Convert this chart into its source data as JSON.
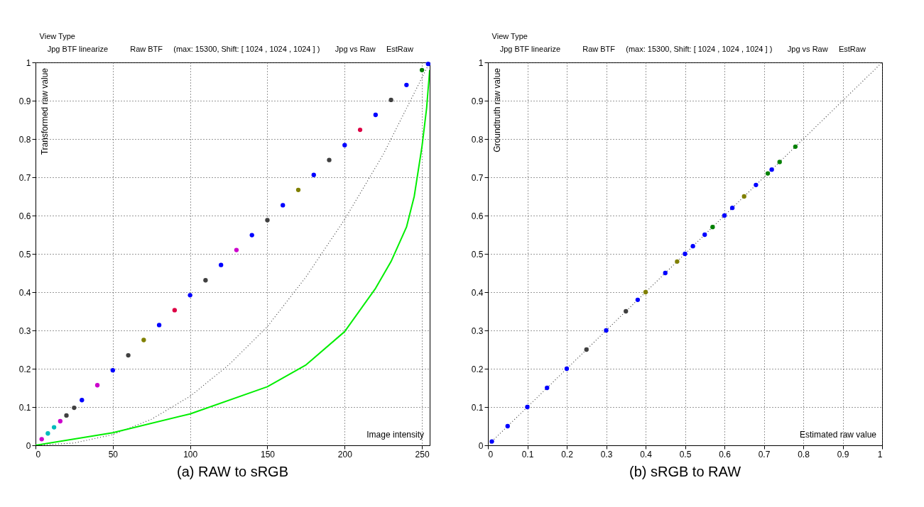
{
  "chart_data": [
    {
      "type": "scatter",
      "title": "(a) RAW to sRGB",
      "xlabel": "Image intensity",
      "ylabel": "Transformed raw value",
      "annotations": [
        "View Type",
        "Jpg BTF",
        "linearize",
        "Raw BTF",
        "(max: 15300, Shift: [ 1024 , 1024 , 1024 ] )",
        "Jpg vs Raw",
        "EstRaw"
      ],
      "xlim": [
        0,
        255
      ],
      "xticks": [
        0,
        50,
        100,
        150,
        200,
        250
      ],
      "ylim": [
        0,
        1
      ],
      "yticks": [
        0,
        0.1,
        0.2,
        0.3,
        0.4,
        0.5,
        0.6,
        0.7,
        0.8,
        0.9,
        1
      ],
      "grid": true,
      "legend": false,
      "marker": "circle",
      "series": [
        {
          "type": "line",
          "marker": "none",
          "line_style": "dotted",
          "color": "#404040",
          "x": [
            0,
            25,
            50,
            75,
            100,
            125,
            150,
            175,
            200,
            225,
            250,
            255
          ],
          "values": [
            0,
            0.006,
            0.028,
            0.068,
            0.128,
            0.21,
            0.31,
            0.44,
            0.59,
            0.76,
            0.96,
            1.0
          ]
        },
        {
          "type": "line",
          "marker": "none",
          "line_style": "solid",
          "color": "#00ee00",
          "x": [
            0,
            50,
            100,
            150,
            175,
            200,
            220,
            230,
            240,
            245,
            250,
            253,
            255
          ],
          "values": [
            0,
            0.033,
            0.082,
            0.153,
            0.21,
            0.297,
            0.41,
            0.48,
            0.57,
            0.65,
            0.78,
            0.88,
            0.98
          ]
        },
        {
          "color": "#0000ff",
          "x": [
            4,
            8,
            12,
            16,
            20,
            25,
            30,
            40,
            50,
            60,
            70,
            80,
            90,
            100,
            110,
            120,
            130,
            140,
            150,
            160,
            170,
            180,
            190,
            200,
            210,
            220,
            230,
            240,
            250,
            254
          ],
          "values": [
            0.016,
            0.031,
            0.047,
            0.063,
            0.078,
            0.098,
            0.118,
            0.157,
            0.196,
            0.235,
            0.275,
            0.314,
            0.353,
            0.392,
            0.431,
            0.471,
            0.51,
            0.549,
            0.588,
            0.627,
            0.667,
            0.706,
            0.745,
            0.784,
            0.824,
            0.863,
            0.902,
            0.941,
            0.98,
            0.996
          ],
          "colors": [
            "#cc00cc",
            "#00bbbb",
            "#00bbbb",
            "#cc00cc",
            "#404040",
            "#404040",
            "#0000ff",
            "#cc00cc",
            "#0000ff",
            "#404040",
            "#808000",
            "#0000ff",
            "#dd0044",
            "#0000ff",
            "#404040",
            "#0000ff",
            "#cc00cc",
            "#0000ff",
            "#404040",
            "#0000ff",
            "#808000",
            "#0000ff",
            "#404040",
            "#0000ff",
            "#dd0044",
            "#0000ff",
            "#404040",
            "#0000ff",
            "#008000",
            "#0000ff"
          ]
        }
      ]
    },
    {
      "type": "scatter",
      "title": "(b) sRGB to RAW",
      "xlabel": "Estimated raw value",
      "ylabel": "Groundtruth raw value",
      "annotations": [
        "View Type",
        "Jpg BTF",
        "linearize",
        "Raw BTF",
        "(max: 15300, Shift: [ 1024 , 1024 , 1024 ] )",
        "Jpg vs Raw",
        "EstRaw"
      ],
      "xlim": [
        0,
        1
      ],
      "xticks": [
        0,
        0.1,
        0.2,
        0.3,
        0.4,
        0.5,
        0.6,
        0.7,
        0.8,
        0.9,
        1
      ],
      "ylim": [
        0,
        1
      ],
      "yticks": [
        0,
        0.1,
        0.2,
        0.3,
        0.4,
        0.5,
        0.6,
        0.7,
        0.8,
        0.9,
        1
      ],
      "grid": true,
      "legend": false,
      "marker": "circle",
      "series": [
        {
          "type": "line",
          "marker": "none",
          "line_style": "dotted",
          "color": "#404040",
          "x": [
            0,
            1
          ],
          "values": [
            0,
            1
          ]
        },
        {
          "color": "#0000ff",
          "x": [
            0.01,
            0.05,
            0.1,
            0.15,
            0.2,
            0.25,
            0.3,
            0.35,
            0.38,
            0.4,
            0.45,
            0.48,
            0.5,
            0.52,
            0.55,
            0.57,
            0.6,
            0.62,
            0.65,
            0.68,
            0.71,
            0.72,
            0.74,
            0.78
          ],
          "values": [
            0.01,
            0.05,
            0.1,
            0.15,
            0.2,
            0.25,
            0.3,
            0.35,
            0.38,
            0.4,
            0.45,
            0.48,
            0.5,
            0.52,
            0.55,
            0.57,
            0.6,
            0.62,
            0.65,
            0.68,
            0.71,
            0.72,
            0.74,
            0.78
          ],
          "colors": [
            "#0000ff",
            "#0000ff",
            "#0000ff",
            "#0000ff",
            "#0000ff",
            "#404040",
            "#0000ff",
            "#404040",
            "#0000ff",
            "#808000",
            "#0000ff",
            "#808000",
            "#0000ff",
            "#0000ff",
            "#0000ff",
            "#008000",
            "#0000ff",
            "#0000ff",
            "#808000",
            "#0000ff",
            "#008000",
            "#0000ff",
            "#008000",
            "#008000"
          ]
        }
      ]
    }
  ]
}
